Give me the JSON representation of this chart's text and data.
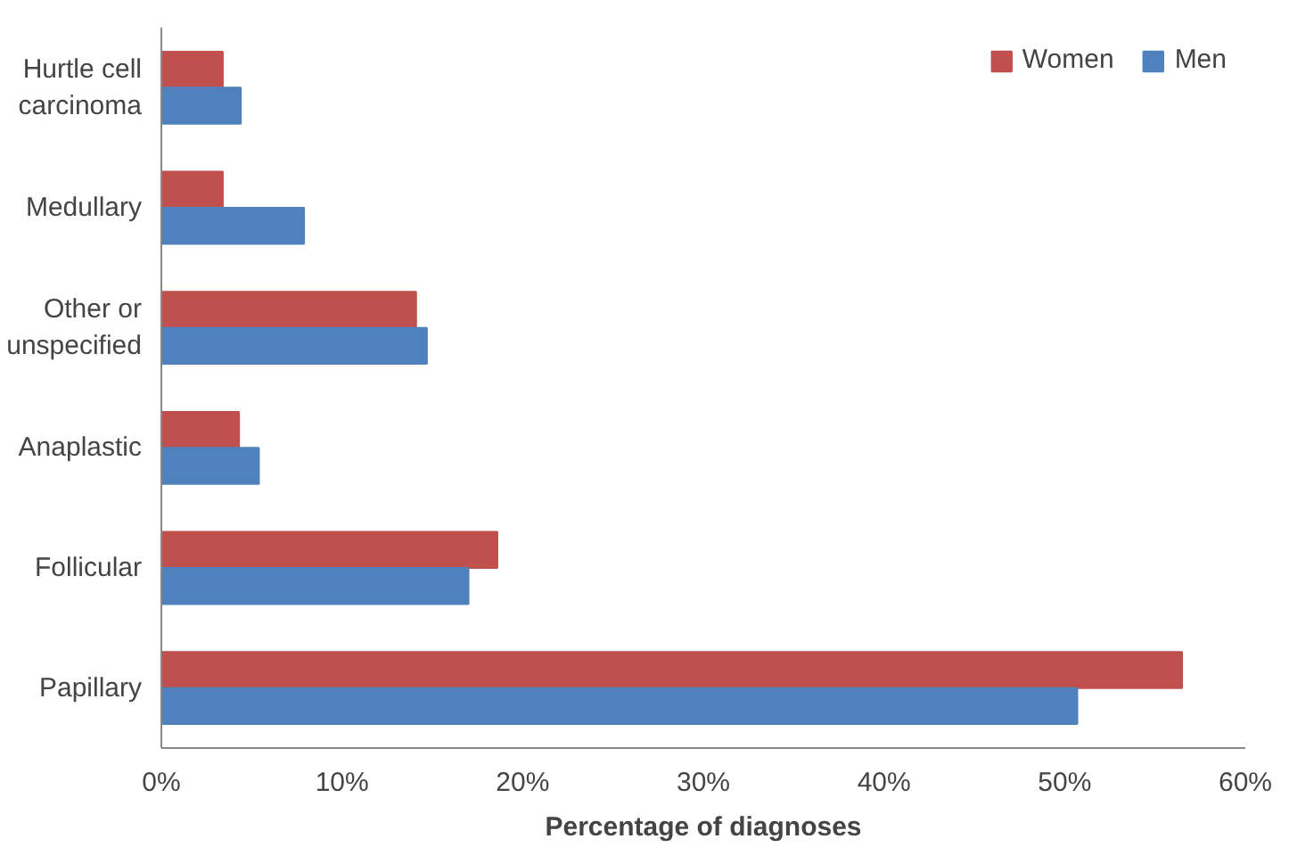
{
  "chart_data": {
    "type": "bar",
    "orientation": "horizontal",
    "xlabel": "Percentage of diagnoses",
    "categories": [
      "Hurtle cell\ncarcinoma",
      "Medullary",
      "Other or\nunspecified",
      "Anaplastic",
      "Follicular",
      "Papillary"
    ],
    "series": [
      {
        "name": "Women",
        "color": "#c0504d",
        "values": [
          3.4,
          3.4,
          14.1,
          4.3,
          18.6,
          56.5
        ]
      },
      {
        "name": "Men",
        "color": "#4f81bd",
        "values": [
          4.4,
          7.9,
          14.7,
          5.4,
          17.0,
          50.7
        ]
      }
    ],
    "xlim": [
      0,
      60
    ],
    "xticks": [
      {
        "value": 0,
        "label": "0%"
      },
      {
        "value": 10,
        "label": "10%"
      },
      {
        "value": 20,
        "label": "20%"
      },
      {
        "value": 30,
        "label": "30%"
      },
      {
        "value": 40,
        "label": "40%"
      },
      {
        "value": 50,
        "label": "50%"
      },
      {
        "value": 60,
        "label": "60%"
      }
    ],
    "grid": false,
    "legend": "top right"
  }
}
